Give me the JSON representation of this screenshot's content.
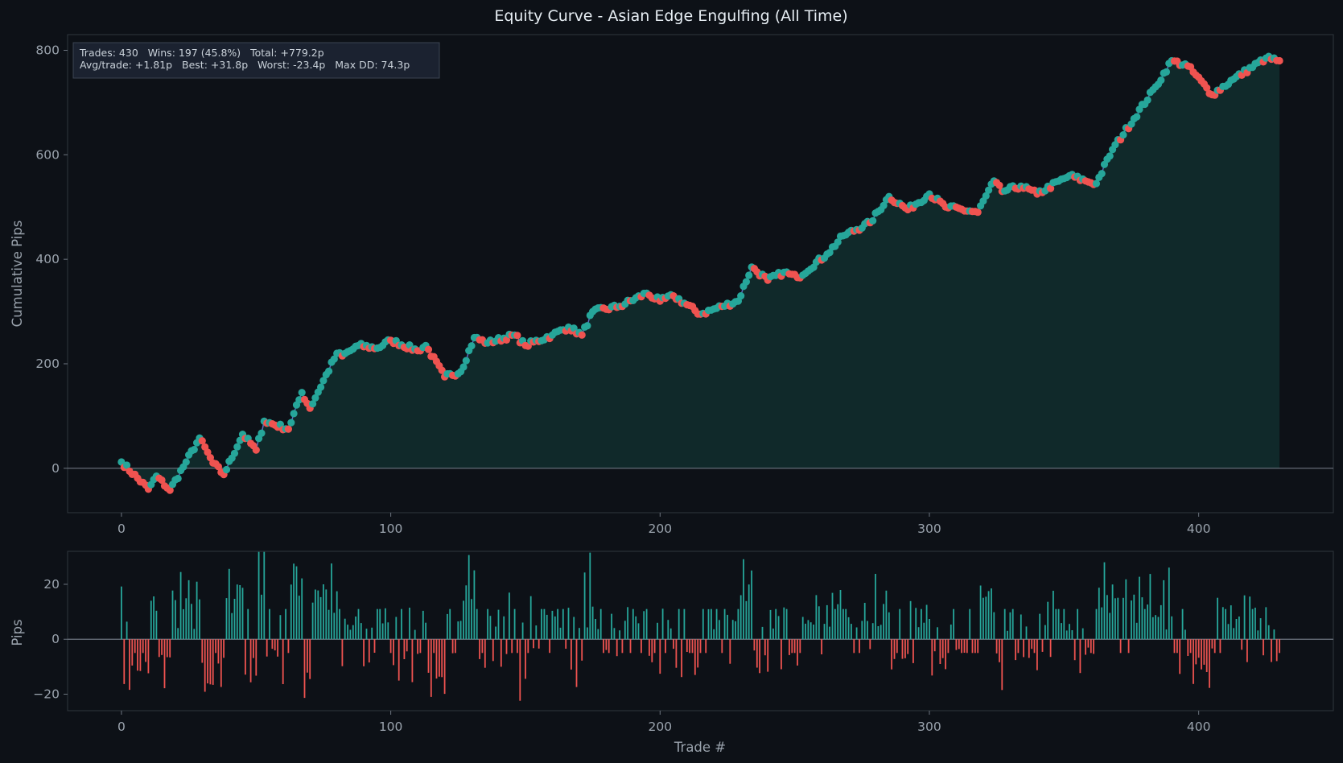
{
  "chart_data": [
    {
      "type": "line",
      "title": "Equity Curve - Asian Edge Engulfing  (All Time)",
      "xlabel": "",
      "ylabel": "Cumulative Pips",
      "xlim": [
        -20,
        450
      ],
      "ylim": [
        -85,
        830
      ],
      "xticks": [
        "0",
        "100",
        "200",
        "300",
        "400"
      ],
      "yticks": [
        "0",
        "200",
        "400",
        "600",
        "800"
      ],
      "series": [
        {
          "values_at_trade": {
            "x": [
              0,
              10,
              13,
              18,
              24,
              29,
              34,
              38,
              45,
              50,
              53,
              62,
              67,
              70,
              80,
              82,
              88,
              95,
              100,
              110,
              113,
              120,
              126,
              131,
              136,
              146,
              150,
              160,
              166,
              171,
              175,
              185,
              195,
              200,
              205,
              215,
              223,
              229,
              234,
              240,
              246,
              251,
              262,
              268,
              278,
              285,
              292,
              300,
              306,
              318,
              324,
              327,
              334,
              340,
              352,
              358,
              362,
              368,
              384,
              390,
              396,
              405,
              413,
              425,
              430
            ],
            "y": [
              12,
              -40,
              -15,
              -42,
              12,
              58,
              10,
              -12,
              65,
              35,
              90,
              75,
              145,
              115,
              220,
              215,
              235,
              230,
              245,
              225,
              235,
              175,
              185,
              250,
              240,
              255,
              235,
              255,
              270,
              255,
              300,
              310,
              335,
              320,
              330,
              295,
              310,
              320,
              385,
              360,
              375,
              365,
              410,
              445,
              470,
              520,
              495,
              525,
              500,
              490,
              550,
              530,
              540,
              525,
              560,
              550,
              545,
              610,
              730,
              780,
              770,
              715,
              745,
              785,
              780
            ]
          }
        }
      ],
      "colors": {
        "win": "#26a69a",
        "loss": "#ef5350",
        "line": "#5c6bc0",
        "fill": "#10292a",
        "loss_fill": "#3a1f22"
      }
    },
    {
      "type": "bar",
      "title": "",
      "xlabel": "Trade #",
      "ylabel": "Pips",
      "xlim": [
        -20,
        450
      ],
      "ylim": [
        -26,
        32
      ],
      "xticks": [
        "0",
        "100",
        "200",
        "300",
        "400"
      ],
      "yticks": [
        "20",
        "0",
        "−20"
      ],
      "notable_values": {
        "max": 31.8,
        "min": -23.4
      }
    }
  ],
  "stats": {
    "line1": "Trades: 430   Wins: 197 (45.8%)   Total: +779.2p",
    "line2": "Avg/trade: +1.81p   Best: +31.8p   Worst: -23.4p   Max DD: 74.3p"
  }
}
